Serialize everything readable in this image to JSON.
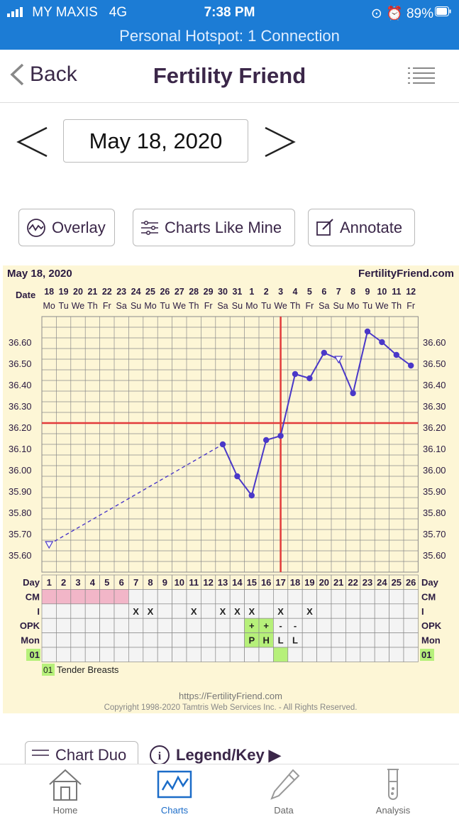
{
  "status": {
    "carrier": "MY MAXIS",
    "network": "4G",
    "time": "7:38 PM",
    "battery": "89%",
    "hotspot": "Personal Hotspot: 1 Connection"
  },
  "nav": {
    "back_label": "Back",
    "title": "Fertility Friend"
  },
  "date_picker": {
    "value": "May 18, 2020"
  },
  "buttons": {
    "overlay": "Overlay",
    "charts_like_mine": "Charts Like Mine",
    "annotate": "Annotate",
    "chart_duo": "Chart Duo",
    "legend": "Legend/Key ▶"
  },
  "chart": {
    "date_title": "May 18, 2020",
    "site": "FertilityFriend.com",
    "date_label": "Date",
    "dates": [
      "18",
      "19",
      "20",
      "21",
      "22",
      "23",
      "24",
      "25",
      "26",
      "27",
      "28",
      "29",
      "30",
      "31",
      "1",
      "2",
      "3",
      "4",
      "5",
      "6",
      "7",
      "8",
      "9",
      "10",
      "11",
      "12"
    ],
    "weekdays": [
      "Mo",
      "Tu",
      "We",
      "Th",
      "Fr",
      "Sa",
      "Su",
      "Mo",
      "Tu",
      "We",
      "Th",
      "Fr",
      "Sa",
      "Su",
      "Mo",
      "Tu",
      "We",
      "Th",
      "Fr",
      "Sa",
      "Su",
      "Mo",
      "Tu",
      "We",
      "Th",
      "Fr"
    ],
    "y_ticks": [
      "36.60",
      "36.50",
      "36.40",
      "36.30",
      "36.20",
      "36.10",
      "36.00",
      "35.90",
      "35.80",
      "35.70",
      "35.60"
    ],
    "row_labels": {
      "day": "Day",
      "cm": "CM",
      "i": "I",
      "opk": "OPK",
      "mon": "Mon",
      "code": "01"
    },
    "intercourse_marks": [
      "X",
      "X",
      "X",
      "X",
      "X",
      "X",
      "X",
      "X"
    ],
    "opk_marks": [
      "+",
      "+",
      "-",
      "-"
    ],
    "mon_marks": [
      "P",
      "H",
      "L",
      "L"
    ],
    "note_code": "01",
    "note_text": "Tender Breasts",
    "footer_url": "https://FertilityFriend.com",
    "footer_copyright": "Copyright 1998-2020 Tamtris Web Services Inc. - All Rights Reserved."
  },
  "chart_data": {
    "type": "line",
    "x": [
      1,
      13,
      14,
      15,
      16,
      17,
      18,
      19,
      20,
      21,
      22,
      23,
      24,
      25,
      26
    ],
    "series": [
      {
        "values": [
          35.65,
          36.12,
          35.97,
          35.88,
          36.14,
          36.16,
          36.45,
          36.43,
          36.55,
          36.52,
          36.36,
          36.65,
          36.6,
          36.54,
          36.49
        ]
      }
    ],
    "open_markers_at_days": [
      1,
      21
    ],
    "dashed_segment_days": [
      1,
      13
    ],
    "coverline": 36.22,
    "ovulation_day": 17,
    "ylim": [
      35.52,
      36.72
    ],
    "xlim": [
      1,
      26
    ],
    "colors": {
      "line": "#4a38c8",
      "coverline": "#e23b3b",
      "grid": "#8a8a8a",
      "period": "#f2b6c8",
      "highlight": "#b6f07a"
    }
  },
  "tabs": [
    {
      "label": "Home",
      "icon": "home-icon"
    },
    {
      "label": "Charts",
      "icon": "chart-icon"
    },
    {
      "label": "Data",
      "icon": "pencil-icon"
    },
    {
      "label": "Analysis",
      "icon": "test-tube-icon"
    }
  ]
}
